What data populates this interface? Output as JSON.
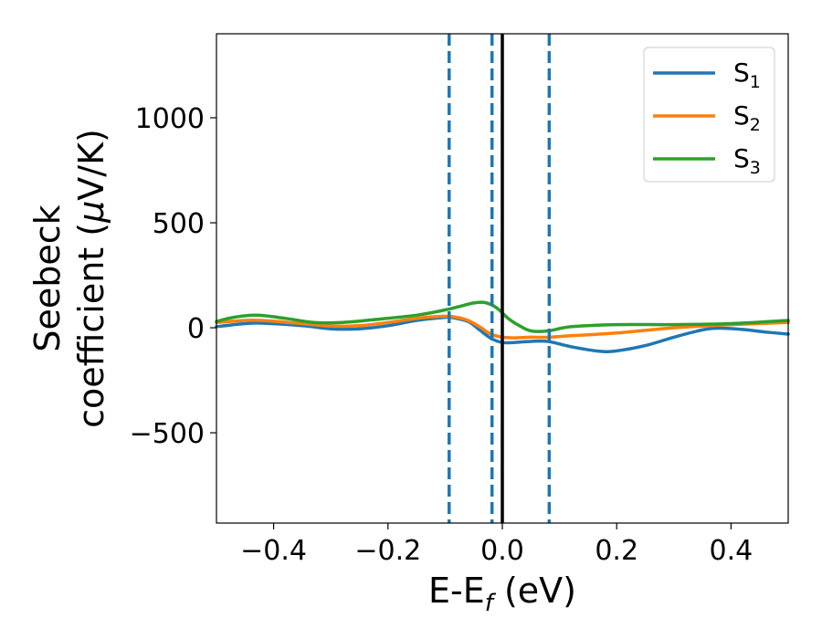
{
  "chart_data": {
    "type": "line",
    "xlabel": {
      "main": "E-E",
      "sub": "f",
      "unit": " (eV)"
    },
    "ylabel": {
      "line1": "Seebeck",
      "line2_prefix": "coefficient  (",
      "mu": "μ",
      "line2_suffix": "V/K)"
    },
    "xlim": [
      -0.5,
      0.5
    ],
    "ylim": [
      -930,
      1400
    ],
    "xticks": [
      -0.4,
      -0.2,
      0.0,
      0.2,
      0.4
    ],
    "xtick_labels": [
      "−0.4",
      "−0.2",
      "0.0",
      "0.2",
      "0.4"
    ],
    "yticks": [
      -500,
      0,
      500,
      1000
    ],
    "ytick_labels": [
      "−500",
      "0",
      "500",
      "1000"
    ],
    "grid": false,
    "legend_position": "top-right",
    "series": [
      {
        "name": "S",
        "sub": "1",
        "color": "#1f77b4",
        "x": [
          -0.5,
          -0.45,
          -0.42,
          -0.35,
          -0.3,
          -0.25,
          -0.2,
          -0.15,
          -0.1,
          -0.09,
          -0.06,
          -0.04,
          -0.02,
          0.0,
          0.02,
          0.05,
          0.08,
          0.12,
          0.17,
          0.2,
          0.25,
          0.3,
          0.35,
          0.38,
          0.42,
          0.46,
          0.5
        ],
        "y": [
          5,
          20,
          22,
          10,
          -5,
          -5,
          10,
          35,
          50,
          50,
          30,
          -10,
          -50,
          -70,
          -70,
          -65,
          -65,
          -90,
          -112,
          -110,
          -85,
          -45,
          -10,
          -2,
          -8,
          -20,
          -30
        ]
      },
      {
        "name": "S",
        "sub": "2",
        "color": "#ff7f0e",
        "x": [
          -0.5,
          -0.45,
          -0.42,
          -0.35,
          -0.3,
          -0.25,
          -0.2,
          -0.15,
          -0.1,
          -0.08,
          -0.06,
          -0.04,
          -0.02,
          0.0,
          0.02,
          0.05,
          0.08,
          0.12,
          0.2,
          0.3,
          0.4,
          0.5
        ],
        "y": [
          25,
          35,
          35,
          20,
          8,
          10,
          25,
          45,
          55,
          50,
          35,
          5,
          -30,
          -45,
          -48,
          -45,
          -45,
          -38,
          -25,
          0,
          15,
          25
        ]
      },
      {
        "name": "S",
        "sub": "3",
        "color": "#2ca02c",
        "x": [
          -0.5,
          -0.47,
          -0.43,
          -0.38,
          -0.33,
          -0.28,
          -0.22,
          -0.15,
          -0.1,
          -0.07,
          -0.05,
          -0.03,
          -0.01,
          0.01,
          0.03,
          0.05,
          0.08,
          0.12,
          0.2,
          0.3,
          0.4,
          0.5
        ],
        "y": [
          30,
          50,
          60,
          45,
          25,
          25,
          40,
          60,
          85,
          105,
          118,
          120,
          95,
          45,
          10,
          -15,
          -15,
          5,
          15,
          15,
          20,
          35
        ]
      }
    ],
    "vlines": [
      {
        "x": -0.093,
        "style": "dashed",
        "color": "#1f77b4"
      },
      {
        "x": -0.018,
        "style": "dashed",
        "color": "#1f77b4"
      },
      {
        "x": 0.0,
        "style": "solid",
        "color": "#000000"
      },
      {
        "x": 0.082,
        "style": "dashed",
        "color": "#1f77b4"
      }
    ]
  }
}
